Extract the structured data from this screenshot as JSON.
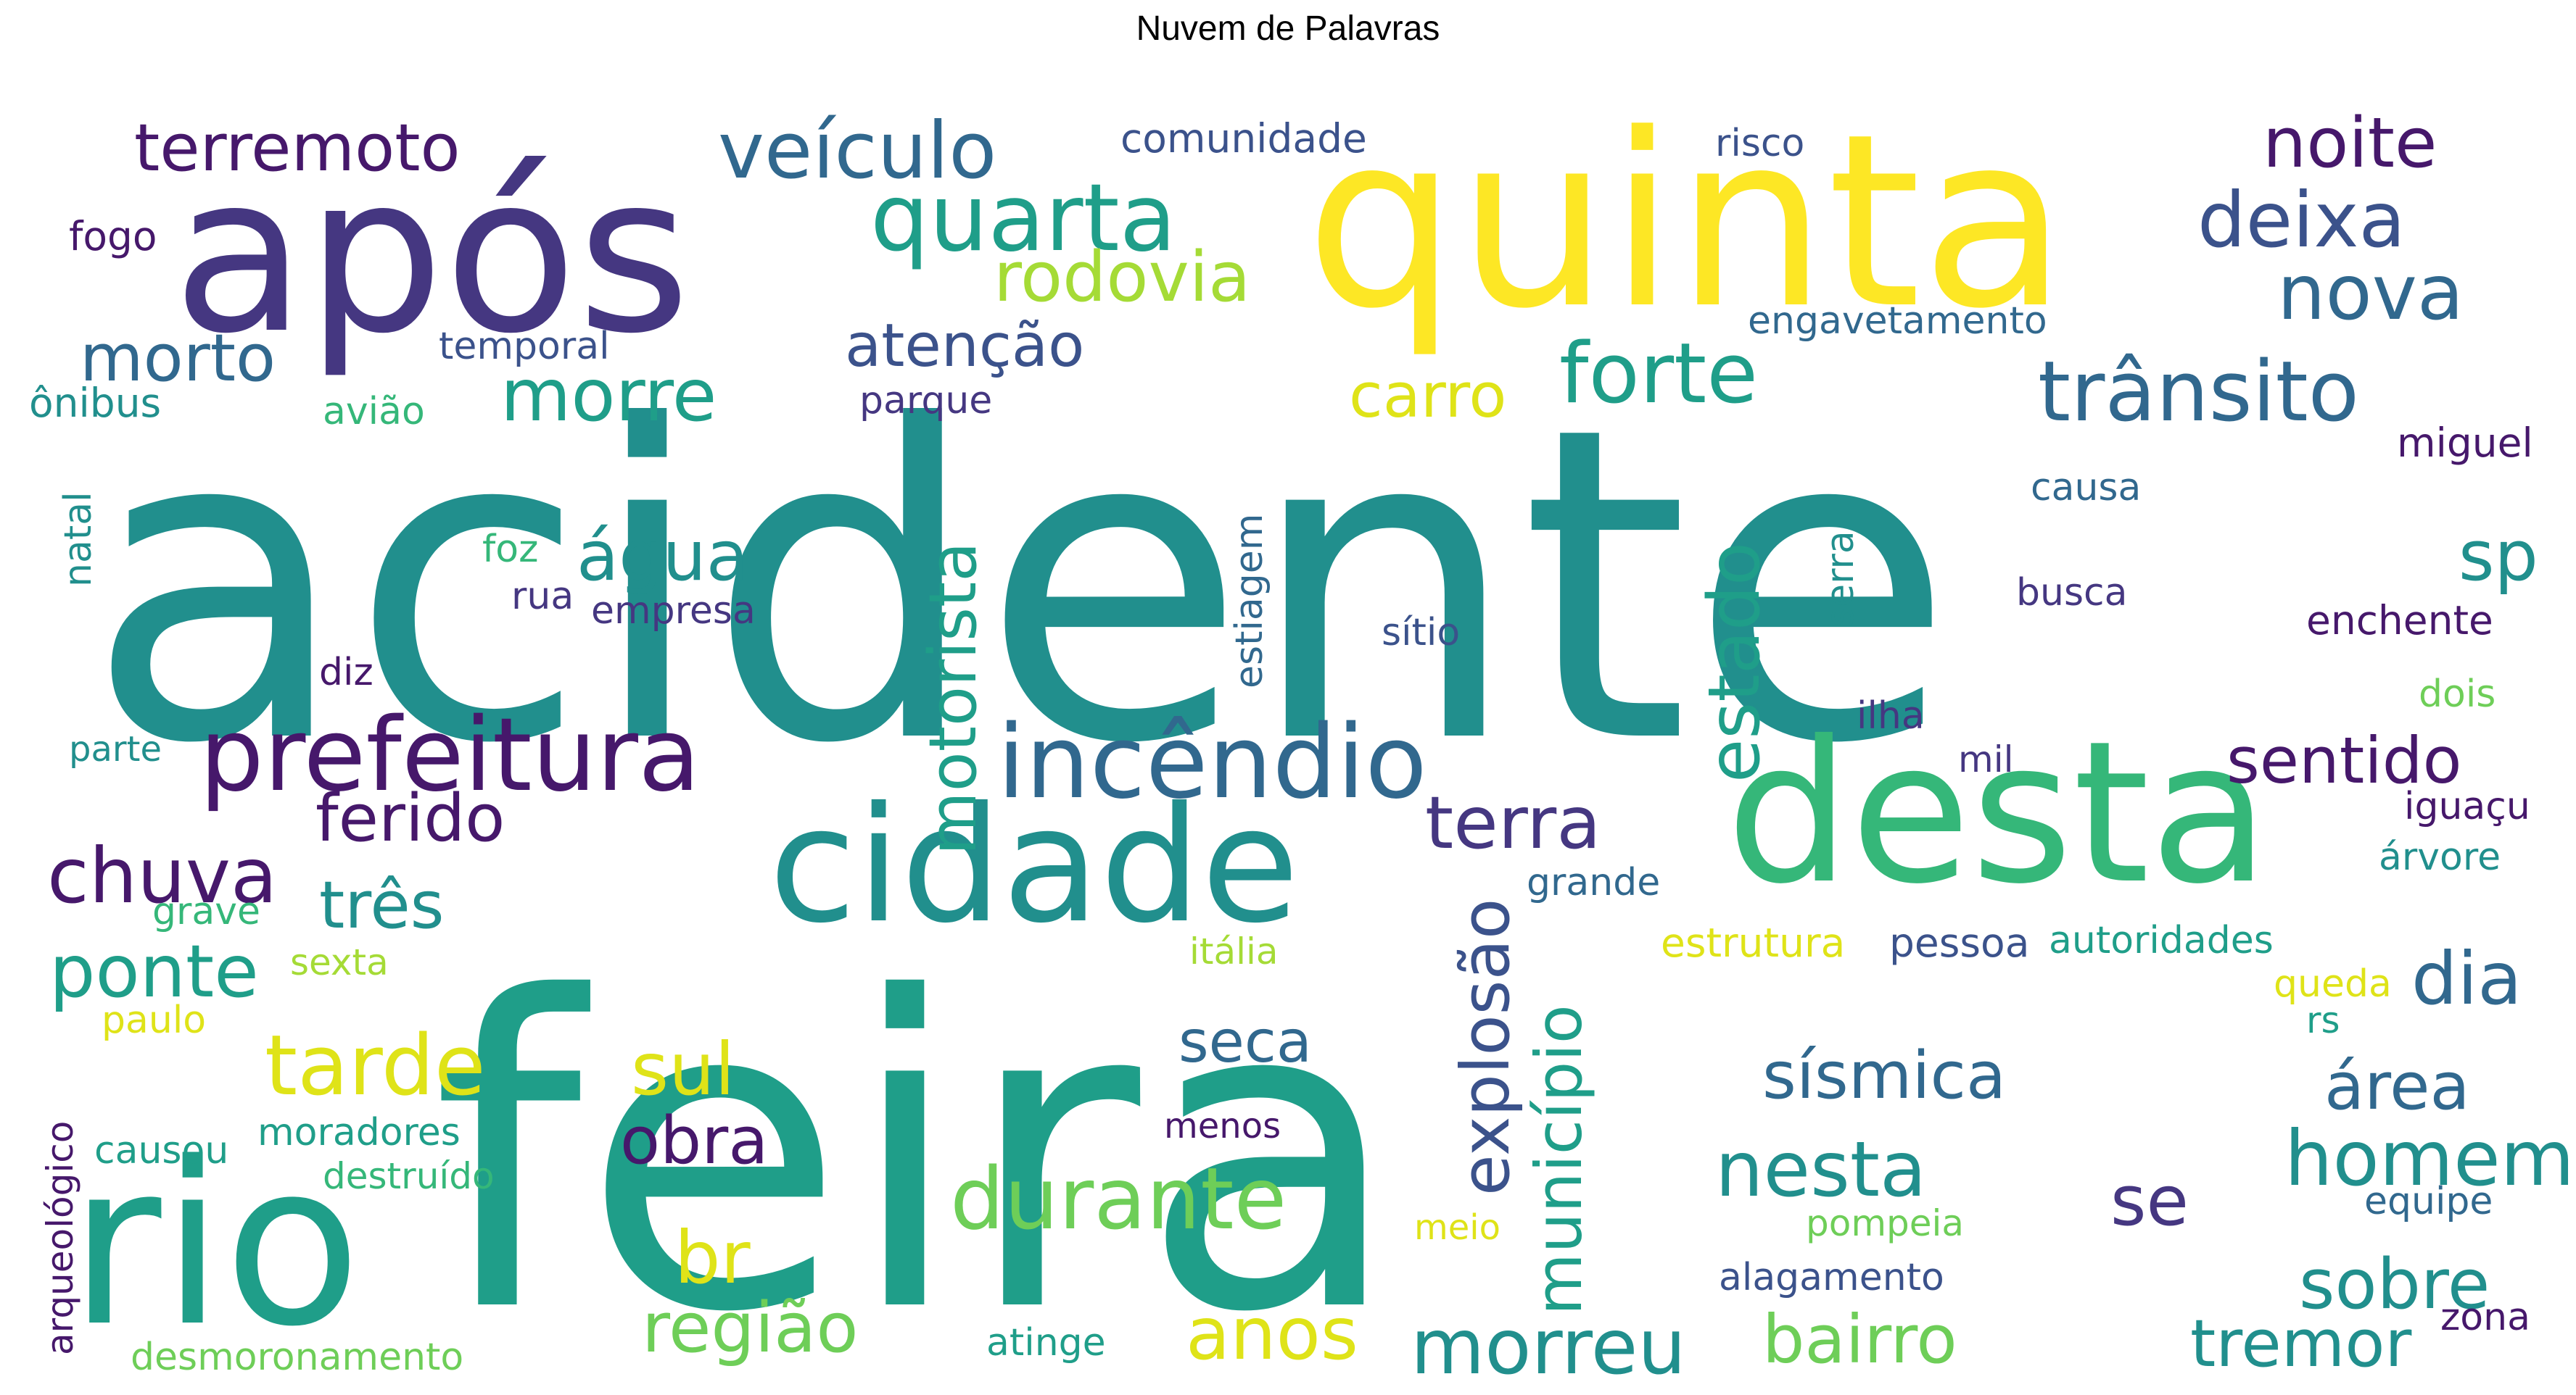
{
  "title": "Nuvem de Palavras",
  "palette": {
    "dark_purple": "#46186b",
    "indigo": "#453781",
    "slate_blue": "#3b528b",
    "steel_blue": "#31688e",
    "teal": "#218f8d",
    "teal_green": "#1f9e89",
    "green": "#35b779",
    "light_green": "#6ece58",
    "lime": "#a5db36",
    "yellow": "#fde725",
    "gold": "#dfe318"
  },
  "words": [
    {
      "text": "acidente",
      "color": "teal"
    },
    {
      "text": "feira",
      "color": "teal_green"
    },
    {
      "text": "quinta",
      "color": "yellow"
    },
    {
      "text": "após",
      "color": "indigo"
    },
    {
      "text": "desta",
      "color": "green"
    },
    {
      "text": "rio",
      "color": "teal_green"
    },
    {
      "text": "cidade",
      "color": "teal"
    },
    {
      "text": "prefeitura",
      "color": "dark_purple"
    },
    {
      "text": "incêndio",
      "color": "steel_blue"
    },
    {
      "text": "quarta",
      "color": "teal_green"
    },
    {
      "text": "veículo",
      "color": "steel_blue"
    },
    {
      "text": "trânsito",
      "color": "steel_blue"
    },
    {
      "text": "forte",
      "color": "teal_green"
    },
    {
      "text": "nova",
      "color": "steel_blue"
    },
    {
      "text": "deixa",
      "color": "slate_blue"
    },
    {
      "text": "noite",
      "color": "dark_purple"
    },
    {
      "text": "terremoto",
      "color": "dark_purple"
    },
    {
      "text": "rodovia",
      "color": "lime"
    },
    {
      "text": "atenção",
      "color": "slate_blue"
    },
    {
      "text": "morto",
      "color": "steel_blue"
    },
    {
      "text": "morre",
      "color": "teal_green"
    },
    {
      "text": "carro",
      "color": "gold"
    },
    {
      "text": "água",
      "color": "teal"
    },
    {
      "text": "chuva",
      "color": "dark_purple"
    },
    {
      "text": "ferido",
      "color": "dark_purple"
    },
    {
      "text": "três",
      "color": "teal"
    },
    {
      "text": "ponte",
      "color": "teal_green"
    },
    {
      "text": "tarde",
      "color": "gold"
    },
    {
      "text": "sul",
      "color": "gold"
    },
    {
      "text": "obra",
      "color": "dark_purple"
    },
    {
      "text": "durante",
      "color": "light_green"
    },
    {
      "text": "br",
      "color": "gold"
    },
    {
      "text": "região",
      "color": "light_green"
    },
    {
      "text": "anos",
      "color": "gold"
    },
    {
      "text": "morreu",
      "color": "teal"
    },
    {
      "text": "bairro",
      "color": "light_green"
    },
    {
      "text": "terra",
      "color": "indigo"
    },
    {
      "text": "sentido",
      "color": "dark_purple"
    },
    {
      "text": "nesta",
      "color": "teal"
    },
    {
      "text": "sísmica",
      "color": "steel_blue"
    },
    {
      "text": "seca",
      "color": "steel_blue"
    },
    {
      "text": "dia",
      "color": "steel_blue"
    },
    {
      "text": "área",
      "color": "steel_blue"
    },
    {
      "text": "homem",
      "color": "teal"
    },
    {
      "text": "se",
      "color": "indigo"
    },
    {
      "text": "sobre",
      "color": "teal"
    },
    {
      "text": "tremor",
      "color": "teal"
    },
    {
      "text": "sp",
      "color": "teal"
    },
    {
      "text": "motorista",
      "color": "teal_green"
    },
    {
      "text": "estado",
      "color": "teal_green"
    },
    {
      "text": "explosão",
      "color": "slate_blue"
    },
    {
      "text": "município",
      "color": "teal_green"
    },
    {
      "text": "comunidade",
      "color": "slate_blue"
    },
    {
      "text": "risco",
      "color": "slate_blue"
    },
    {
      "text": "engavetamento",
      "color": "steel_blue"
    },
    {
      "text": "temporal",
      "color": "slate_blue"
    },
    {
      "text": "parque",
      "color": "indigo"
    },
    {
      "text": "fogo",
      "color": "dark_purple"
    },
    {
      "text": "ônibus",
      "color": "teal"
    },
    {
      "text": "avião",
      "color": "green"
    },
    {
      "text": "miguel",
      "color": "dark_purple"
    },
    {
      "text": "causa",
      "color": "steel_blue"
    },
    {
      "text": "natal",
      "color": "teal"
    },
    {
      "text": "foz",
      "color": "green"
    },
    {
      "text": "rua",
      "color": "indigo"
    },
    {
      "text": "empresa",
      "color": "indigo"
    },
    {
      "text": "estiagem",
      "color": "steel_blue"
    },
    {
      "text": "sítio",
      "color": "slate_blue"
    },
    {
      "text": "serra",
      "color": "teal"
    },
    {
      "text": "busca",
      "color": "indigo"
    },
    {
      "text": "enchente",
      "color": "dark_purple"
    },
    {
      "text": "diz",
      "color": "dark_purple"
    },
    {
      "text": "ilha",
      "color": "indigo"
    },
    {
      "text": "dois",
      "color": "light_green"
    },
    {
      "text": "parte",
      "color": "teal"
    },
    {
      "text": "mil",
      "color": "indigo"
    },
    {
      "text": "iguaçu",
      "color": "dark_purple"
    },
    {
      "text": "árvore",
      "color": "teal"
    },
    {
      "text": "grave",
      "color": "green"
    },
    {
      "text": "grande",
      "color": "steel_blue"
    },
    {
      "text": "sexta",
      "color": "lime"
    },
    {
      "text": "itália",
      "color": "lime"
    },
    {
      "text": "estrutura",
      "color": "gold"
    },
    {
      "text": "pessoa",
      "color": "slate_blue"
    },
    {
      "text": "autoridades",
      "color": "teal_green"
    },
    {
      "text": "queda",
      "color": "gold"
    },
    {
      "text": "rs",
      "color": "teal_green"
    },
    {
      "text": "paulo",
      "color": "gold"
    },
    {
      "text": "arqueológico",
      "color": "dark_purple"
    },
    {
      "text": "causou",
      "color": "teal_green"
    },
    {
      "text": "moradores",
      "color": "teal_green"
    },
    {
      "text": "destruído",
      "color": "green"
    },
    {
      "text": "menos",
      "color": "dark_purple"
    },
    {
      "text": "meio",
      "color": "gold"
    },
    {
      "text": "pompeia",
      "color": "light_green"
    },
    {
      "text": "equipe",
      "color": "steel_blue"
    },
    {
      "text": "alagamento",
      "color": "slate_blue"
    },
    {
      "text": "desmoronamento",
      "color": "light_green"
    },
    {
      "text": "atinge",
      "color": "teal_green"
    },
    {
      "text": "zona",
      "color": "dark_purple"
    }
  ]
}
